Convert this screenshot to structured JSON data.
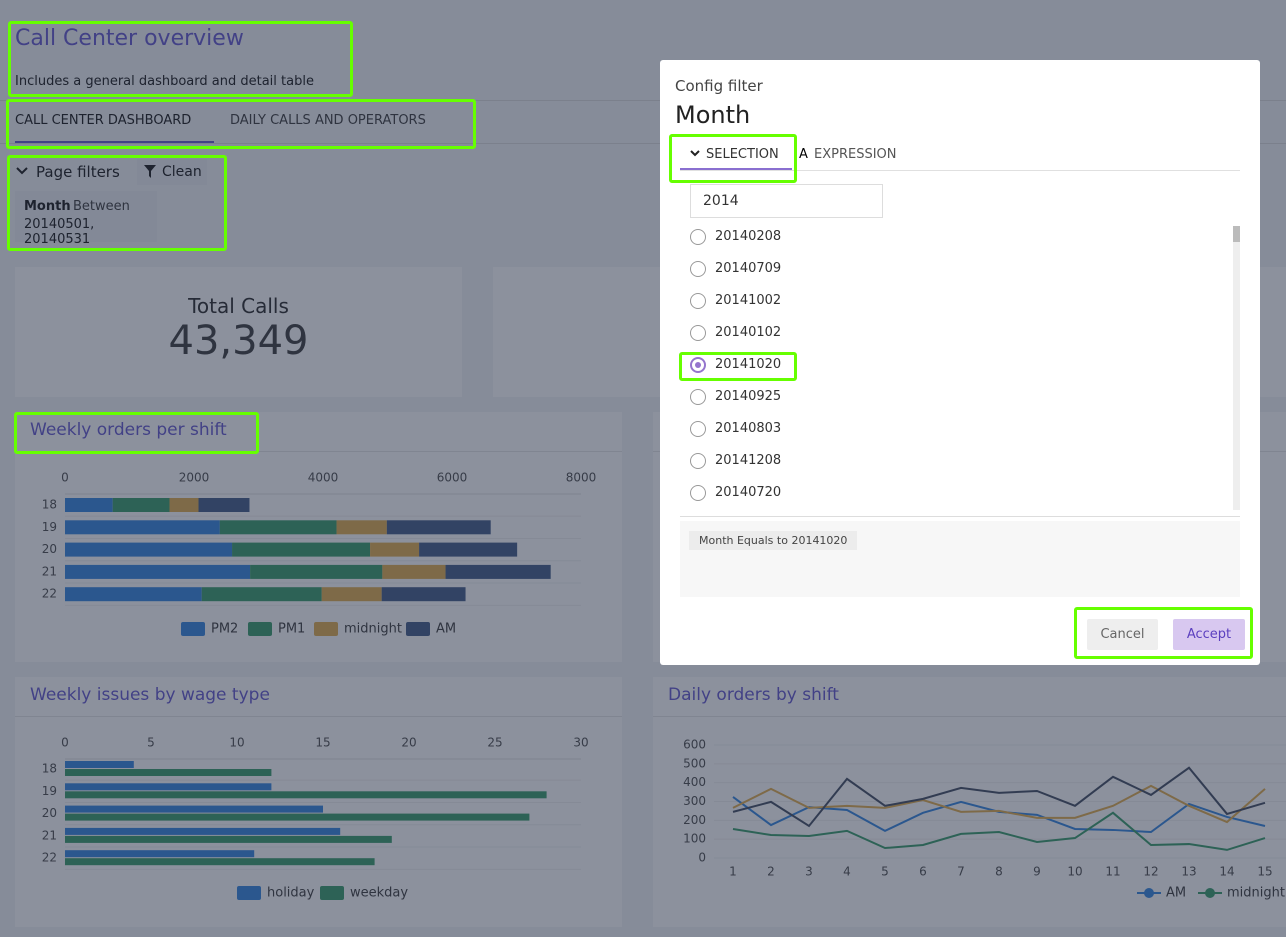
{
  "header": {
    "title": "Call Center overview",
    "subtitle": "Includes a general dashboard and detail table"
  },
  "tabs": [
    "CALL CENTER DASHBOARD",
    "DAILY CALLS AND OPERATORS"
  ],
  "filters": {
    "toggle": "Page filters",
    "clean": "Clean",
    "chip": {
      "field": "Month",
      "operator": "Between",
      "value": "20140501, 20140531"
    }
  },
  "kpi": {
    "label": "Total Calls",
    "value": "43,349"
  },
  "charts": [
    {
      "type": "stacked-bar",
      "title": "Weekly orders per shift",
      "categories": [
        "18",
        "19",
        "20",
        "21",
        "22"
      ],
      "xlim": [
        0,
        8000
      ],
      "xticks": [
        0,
        2000,
        4000,
        6000,
        8000
      ],
      "series": [
        {
          "name": "PM2",
          "color": "#3d8ae0",
          "values": [
            740,
            2400,
            2590,
            2870,
            2120
          ]
        },
        {
          "name": "PM1",
          "color": "#40a070",
          "values": [
            880,
            1810,
            2140,
            2050,
            1860
          ]
        },
        {
          "name": "midnight",
          "color": "#e2b155",
          "values": [
            450,
            780,
            760,
            980,
            930
          ]
        },
        {
          "name": "AM",
          "color": "#4a628c",
          "values": [
            790,
            1610,
            1520,
            1630,
            1300
          ]
        }
      ]
    },
    {
      "type": "grouped-bar",
      "title": "Weekly issues by wage type",
      "categories": [
        "18",
        "19",
        "20",
        "21",
        "22"
      ],
      "xlim": [
        0,
        30
      ],
      "xticks": [
        0,
        5,
        10,
        15,
        20,
        25,
        30
      ],
      "series": [
        {
          "name": "holiday",
          "color": "#3d8ae0",
          "values": [
            4,
            12,
            15,
            16,
            11
          ]
        },
        {
          "name": "weekday",
          "color": "#40a070",
          "values": [
            12,
            28,
            27,
            19,
            18
          ]
        }
      ]
    },
    {
      "type": "line",
      "title": "Daily orders by shift",
      "categories": [
        "1",
        "2",
        "3",
        "4",
        "5",
        "6",
        "7",
        "8",
        "9",
        "10",
        "11",
        "12",
        "13",
        "14",
        "15"
      ],
      "ylim": [
        0,
        600
      ],
      "yticks": [
        0,
        100,
        200,
        300,
        400,
        500,
        600
      ],
      "series": [
        {
          "name": "AM",
          "color": "#3d8ae0",
          "values": [
            324,
            175,
            270,
            255,
            144,
            240,
            298,
            245,
            229,
            154,
            149,
            138,
            287,
            218,
            170
          ]
        },
        {
          "color": "#e2b155",
          "values": [
            266,
            367,
            266,
            277,
            266,
            308,
            245,
            250,
            213,
            213,
            277,
            383,
            277,
            191,
            367
          ]
        },
        {
          "color": "#4a5468",
          "values": [
            245,
            298,
            170,
            420,
            277,
            314,
            372,
            346,
            356,
            277,
            431,
            335,
            479,
            234,
            293
          ]
        },
        {
          "name": "midnight",
          "color": "#40a070",
          "values": [
            154,
            122,
            117,
            144,
            53,
            69,
            128,
            138,
            85,
            106,
            240,
            69,
            74,
            43,
            106
          ]
        }
      ]
    }
  ],
  "modal": {
    "caption": "Config filter",
    "field": "Month",
    "tabs": [
      {
        "label": "SELECTION"
      },
      {
        "icon": "A",
        "label": "EXPRESSION"
      }
    ],
    "search": "2014",
    "options": [
      "20140208",
      "20140709",
      "20141002",
      "20140102",
      "20141020",
      "20140925",
      "20140803",
      "20141208",
      "20140720"
    ],
    "selected_option": "20141020",
    "summary": "Month Equals to 20141020",
    "cancel": "Cancel",
    "accept": "Accept"
  }
}
